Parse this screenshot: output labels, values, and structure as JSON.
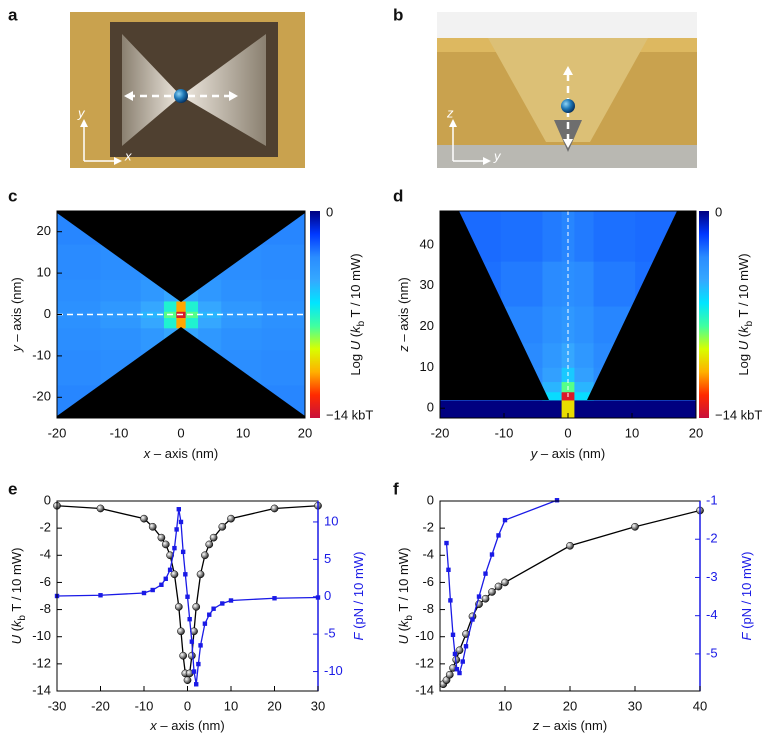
{
  "illustrations": [
    {
      "label": "a",
      "axis_labels": [
        "y",
        "x"
      ]
    },
    {
      "label": "b",
      "axis_labels": [
        "z",
        "y"
      ]
    }
  ],
  "chart_data": [
    {
      "type": "heatmap",
      "label": "c",
      "xlabel": [
        {
          "text": "x",
          "style": "italic"
        },
        {
          "text": " – axis (nm)"
        }
      ],
      "ylabel": [
        {
          "text": "y",
          "style": "italic"
        },
        {
          "text": " – axis (nm)"
        }
      ],
      "xlim": [
        -20,
        20
      ],
      "xticks": [
        -20,
        -10,
        0,
        10,
        20
      ],
      "ylim": [
        -25,
        25
      ],
      "yticks": [
        -20,
        -10,
        0,
        10,
        20
      ],
      "x": [
        -17,
        -9,
        -4,
        -1.5,
        0,
        1.5,
        4,
        9,
        17
      ],
      "y": [
        -22,
        -12,
        -5,
        -1.5,
        0,
        1.5,
        5,
        12,
        22
      ],
      "z": [
        [
          -3.0,
          -3.0,
          -3.2,
          -3.4,
          -3.5,
          -3.4,
          -3.2,
          -3.0,
          -3.0
        ],
        [
          -3.1,
          -3.2,
          -3.4,
          -3.7,
          -3.9,
          -3.7,
          -3.4,
          -3.2,
          -3.1
        ],
        [
          -3.2,
          -3.4,
          -3.8,
          -4.5,
          -5.0,
          -4.5,
          -3.8,
          -3.4,
          -3.2
        ],
        [
          -3.4,
          -3.8,
          -4.6,
          -7.0,
          -11.0,
          -7.0,
          -4.6,
          -3.8,
          -3.4
        ],
        [
          -3.5,
          -4.0,
          -5.0,
          -8.0,
          -13.5,
          -8.0,
          -5.0,
          -4.0,
          -3.5
        ],
        [
          -3.4,
          -3.8,
          -4.6,
          -7.0,
          -11.0,
          -7.0,
          -4.6,
          -3.8,
          -3.4
        ],
        [
          -3.2,
          -3.4,
          -3.8,
          -4.5,
          -5.0,
          -4.5,
          -3.8,
          -3.4,
          -3.2
        ],
        [
          -3.1,
          -3.2,
          -3.4,
          -3.7,
          -3.9,
          -3.7,
          -3.4,
          -3.2,
          -3.1
        ],
        [
          -3.0,
          -3.0,
          -3.2,
          -3.4,
          -3.5,
          -3.4,
          -3.2,
          -3.0,
          -3.0
        ]
      ],
      "clim": [
        -14,
        0
      ],
      "colormap": [
        "#000080",
        "#0038ff",
        "#2a8cff",
        "#35a8ff",
        "#00e5ff",
        "#40ffa0",
        "#d8ff00",
        "#ffb000",
        "#ff2a00",
        "#c8103c"
      ],
      "cbticks": [
        0,
        {
          "value": -14,
          "label": "−14 kbT"
        }
      ],
      "cblabel": [
        {
          "text": "Log "
        },
        {
          "text": "U",
          "style": "italic"
        },
        {
          "text": " ("
        },
        {
          "text": "k",
          "style": "italic"
        },
        {
          "text": "b",
          "style": "sub"
        },
        {
          "text": " T / 10 mW)"
        }
      ]
    },
    {
      "type": "heatmap",
      "label": "d",
      "xlabel": [
        {
          "text": "y",
          "style": "italic"
        },
        {
          "text": " – axis (nm)"
        }
      ],
      "ylabel": [
        {
          "text": "z",
          "style": "italic"
        },
        {
          "text": " – axis (nm)"
        }
      ],
      "xlim": [
        -20,
        20
      ],
      "xticks": [
        -20,
        -10,
        0,
        10,
        20
      ],
      "ylim": [
        -2.4,
        48.3
      ],
      "yticks": [
        0,
        10,
        20,
        30,
        40
      ],
      "x": [
        -15,
        -6,
        -2,
        0,
        2,
        6,
        15
      ],
      "y": [
        1,
        3,
        5,
        8,
        12,
        20,
        30,
        42
      ],
      "z": [
        [
          0,
          0,
          0,
          -10,
          0,
          0,
          0
        ],
        [
          -3.0,
          -3.5,
          -6.0,
          -13.5,
          -6.0,
          -3.5,
          -3.0
        ],
        [
          -3.0,
          -3.5,
          -5.0,
          -8.0,
          -5.0,
          -3.5,
          -3.0
        ],
        [
          -3.0,
          -3.2,
          -4.2,
          -5.5,
          -4.2,
          -3.2,
          -3.0
        ],
        [
          -3.0,
          -3.1,
          -3.8,
          -4.6,
          -3.8,
          -3.1,
          -3.0
        ],
        [
          -2.8,
          -3.0,
          -3.4,
          -3.8,
          -3.4,
          -3.0,
          -2.8
        ],
        [
          -2.6,
          -2.8,
          -3.1,
          -3.3,
          -3.1,
          -2.8,
          -2.6
        ],
        [
          -2.5,
          -2.6,
          -2.8,
          -3.0,
          -2.8,
          -2.6,
          -2.5
        ]
      ],
      "clim": [
        -14,
        0
      ],
      "colormap": [
        "#000080",
        "#0038ff",
        "#2a8cff",
        "#35a8ff",
        "#00e5ff",
        "#40ffa0",
        "#d8ff00",
        "#ffb000",
        "#ff2a00",
        "#c8103c"
      ],
      "cbticks": [
        0,
        {
          "value": -14,
          "label": "−14 kbT"
        }
      ],
      "cblabel": [
        {
          "text": "Log "
        },
        {
          "text": "U",
          "style": "italic"
        },
        {
          "text": " ("
        },
        {
          "text": "k",
          "style": "italic"
        },
        {
          "text": "b",
          "style": "sub"
        },
        {
          "text": " T / 10 mW)"
        }
      ]
    },
    {
      "type": "line",
      "label": "e",
      "xlabel": [
        {
          "text": "x",
          "style": "italic"
        },
        {
          "text": " – axis (nm)"
        }
      ],
      "ylabel": [
        {
          "text": "U",
          "style": "italic"
        },
        {
          "text": " ("
        },
        {
          "text": "k",
          "style": "italic"
        },
        {
          "text": "b",
          "style": "sub"
        },
        {
          "text": " T / 10 mW)"
        }
      ],
      "y2label": [
        {
          "text": "F",
          "style": "italic"
        },
        {
          "text": " (pN / 10 mW)"
        }
      ],
      "y2color": "#1a1ae6",
      "xlim": [
        -30,
        30
      ],
      "xticks": [
        -30,
        -20,
        -10,
        0,
        10,
        20,
        30
      ],
      "ylim": [
        -14,
        0
      ],
      "yticks": [
        -14,
        -12,
        -10,
        -8,
        -6,
        -4,
        -2,
        0
      ],
      "y2lim": [
        -12.6,
        12.8
      ],
      "y2ticks": [
        -10,
        -5,
        0,
        5,
        10
      ],
      "series": [
        {
          "color": "#000000",
          "marker": "circle",
          "axis": "y",
          "x": [
            -30,
            -20,
            -10,
            -8,
            -6,
            -5,
            -4,
            -3,
            -2,
            -1.5,
            -1,
            -0.5,
            0,
            0.5,
            1,
            1.5,
            2,
            3,
            4,
            5,
            6,
            8,
            10,
            20,
            30
          ],
          "values": [
            -0.35,
            -0.55,
            -1.3,
            -1.9,
            -2.7,
            -3.2,
            -4.0,
            -5.4,
            -7.8,
            -9.6,
            -11.4,
            -12.7,
            -13.2,
            -12.7,
            -11.4,
            -9.6,
            -7.8,
            -5.4,
            -4.0,
            -3.2,
            -2.7,
            -1.9,
            -1.3,
            -0.55,
            -0.35
          ]
        },
        {
          "color": "#1a1ae6",
          "marker": "square",
          "axis": "y2",
          "x": [
            -30,
            -20,
            -10,
            -8,
            -6,
            -5,
            -4,
            -3,
            -2.5,
            -2,
            -1.5,
            -1,
            -0.5,
            0,
            0.5,
            1,
            1.5,
            2,
            2.5,
            3,
            4,
            5,
            6,
            8,
            10,
            20,
            30
          ],
          "values": [
            0.1,
            0.2,
            0.5,
            0.9,
            1.6,
            2.4,
            3.6,
            6.5,
            9.0,
            11.7,
            10.0,
            6.0,
            3.0,
            0,
            -3.0,
            -6.0,
            -10.0,
            -11.7,
            -9.0,
            -6.5,
            -3.6,
            -2.4,
            -1.6,
            -0.9,
            -0.5,
            -0.2,
            -0.1
          ]
        }
      ]
    },
    {
      "type": "line",
      "label": "f",
      "xlabel": [
        {
          "text": "z",
          "style": "italic"
        },
        {
          "text": " – axis (nm)"
        }
      ],
      "ylabel": [
        {
          "text": "U",
          "style": "italic"
        },
        {
          "text": " ("
        },
        {
          "text": "k",
          "style": "italic"
        },
        {
          "text": "b",
          "style": "sub"
        },
        {
          "text": " T / 10 mW)"
        }
      ],
      "y2label": [
        {
          "text": "F",
          "style": "italic"
        },
        {
          "text": " (pN / 10 mW)"
        }
      ],
      "y2color": "#1a1ae6",
      "xlim": [
        0,
        40
      ],
      "xticks": [
        10,
        20,
        30,
        40
      ],
      "ylim": [
        -14,
        0
      ],
      "yticks": [
        -14,
        -12,
        -10,
        -8,
        -6,
        -4,
        -2,
        0
      ],
      "y2lim": [
        -5.97,
        -1
      ],
      "y2ticks": [
        -5,
        -4,
        -3,
        -2,
        -1
      ],
      "series": [
        {
          "color": "#000000",
          "marker": "circle",
          "axis": "y",
          "x": [
            0.5,
            1,
            1.5,
            2,
            2.5,
            3,
            4,
            5,
            6,
            7,
            8,
            9,
            10,
            20,
            30,
            40
          ],
          "values": [
            -13.5,
            -13.2,
            -12.8,
            -12.3,
            -11.7,
            -11.0,
            -9.8,
            -8.5,
            -7.6,
            -7.2,
            -6.7,
            -6.3,
            -6.0,
            -3.3,
            -1.9,
            -0.7
          ]
        },
        {
          "color": "#1a1ae6",
          "marker": "square",
          "axis": "y2",
          "x": [
            1,
            1.3,
            1.6,
            2,
            2.3,
            2.6,
            3,
            3.5,
            4,
            5,
            6,
            7,
            8,
            9,
            10,
            18
          ],
          "values": [
            -2.1,
            -2.8,
            -3.6,
            -4.5,
            -5.0,
            -5.4,
            -5.5,
            -5.2,
            -4.8,
            -4.1,
            -3.5,
            -2.9,
            -2.4,
            -1.9,
            -1.5,
            -0.98
          ]
        }
      ]
    }
  ]
}
